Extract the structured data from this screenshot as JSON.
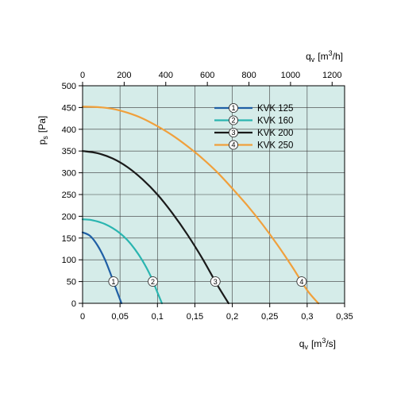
{
  "chart_data": {
    "type": "line",
    "x_bottom": {
      "label_base": "q",
      "label_sub": "v",
      "label_unit": "[m",
      "label_sup": "3",
      "label_end": "/s]",
      "range": [
        0,
        0.35
      ],
      "ticks": [
        "0",
        "0,05",
        "0,1",
        "0,15",
        "0,2",
        "0,25",
        "0,3",
        "0,35"
      ]
    },
    "x_top": {
      "label_base": "q",
      "label_sub": "v",
      "label_unit": "[m",
      "label_sup": "3",
      "label_end": "/h]",
      "range": [
        0,
        1260
      ],
      "ticks": [
        "0",
        "200",
        "400",
        "600",
        "800",
        "1000",
        "1200"
      ]
    },
    "y": {
      "label_base": "p",
      "label_sub": "s",
      "label_unit": "[Pa]",
      "range": [
        0,
        500
      ],
      "ticks": [
        "0",
        "50",
        "100",
        "150",
        "200",
        "250",
        "300",
        "350",
        "400",
        "450",
        "500"
      ]
    },
    "grid": true,
    "background_color": "#d5ece9",
    "legend_position": "top-right",
    "series": [
      {
        "name": "KVK 125",
        "marker": "1",
        "color": "#1f5fa5",
        "marker_y": 50,
        "x": [
          0,
          0.01,
          0.02,
          0.03,
          0.04,
          0.045,
          0.052
        ],
        "y": [
          163,
          155,
          133,
          100,
          56,
          32,
          0
        ]
      },
      {
        "name": "KVK 160",
        "marker": "2",
        "color": "#2ab5b0",
        "marker_y": 50,
        "x": [
          0,
          0.01,
          0.02,
          0.03,
          0.04,
          0.05,
          0.06,
          0.07,
          0.08,
          0.09,
          0.1,
          0.106
        ],
        "y": [
          193,
          192,
          188,
          182,
          173,
          161,
          145,
          124,
          98,
          66,
          25,
          0
        ]
      },
      {
        "name": "KVK 200",
        "marker": "3",
        "color": "#1a1a1a",
        "marker_y": 50,
        "x": [
          0,
          0.02,
          0.04,
          0.06,
          0.08,
          0.1,
          0.12,
          0.14,
          0.16,
          0.18,
          0.195
        ],
        "y": [
          350,
          345,
          333,
          313,
          285,
          250,
          207,
          158,
          103,
          42,
          0
        ]
      },
      {
        "name": "KVK 250",
        "marker": "4",
        "color": "#f0a03c",
        "marker_y": 50,
        "x": [
          0,
          0.02,
          0.04,
          0.06,
          0.08,
          0.1,
          0.12,
          0.14,
          0.16,
          0.18,
          0.2,
          0.22,
          0.24,
          0.26,
          0.28,
          0.3,
          0.315
        ],
        "y": [
          452,
          451,
          447,
          438,
          425,
          407,
          386,
          361,
          333,
          301,
          264,
          225,
          182,
          135,
          84,
          30,
          0
        ]
      }
    ]
  }
}
